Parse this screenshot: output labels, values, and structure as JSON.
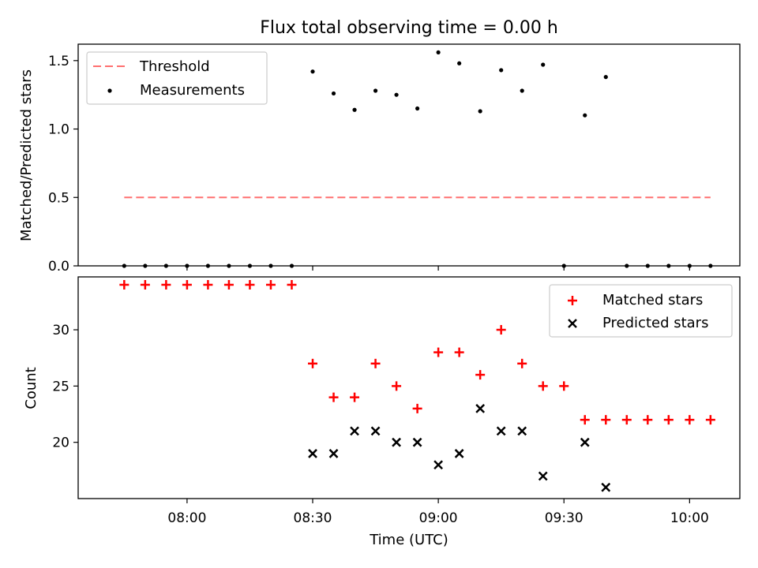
{
  "chart_data": [
    {
      "type": "scatter",
      "title": "Flux total observing time = 0.00 h",
      "ylabel": "Matched/Predicted stars",
      "xlabel": "",
      "ylim": [
        0,
        1.62
      ],
      "yticks": [
        "0.0",
        "0.5",
        "1.0",
        "1.5"
      ],
      "grid": false,
      "legend_position": "upper-left",
      "threshold": {
        "name": "Threshold",
        "value": 0.5,
        "x_start": "07:45",
        "x_end": "10:05",
        "color": "#ff7070"
      },
      "series": [
        {
          "name": "Measurements",
          "color": "#000000",
          "points": [
            [
              "07:45",
              0
            ],
            [
              "07:50",
              0
            ],
            [
              "07:55",
              0
            ],
            [
              "08:00",
              0
            ],
            [
              "08:05",
              0
            ],
            [
              "08:10",
              0
            ],
            [
              "08:15",
              0
            ],
            [
              "08:20",
              0
            ],
            [
              "08:25",
              0
            ],
            [
              "08:30",
              1.42
            ],
            [
              "08:35",
              1.26
            ],
            [
              "08:40",
              1.14
            ],
            [
              "08:45",
              1.28
            ],
            [
              "08:50",
              1.25
            ],
            [
              "08:55",
              1.15
            ],
            [
              "09:00",
              1.56
            ],
            [
              "09:05",
              1.48
            ],
            [
              "09:10",
              1.13
            ],
            [
              "09:15",
              1.43
            ],
            [
              "09:20",
              1.28
            ],
            [
              "09:25",
              1.47
            ],
            [
              "09:30",
              0
            ],
            [
              "09:35",
              1.1
            ],
            [
              "09:40",
              1.38
            ],
            [
              "09:45",
              0
            ],
            [
              "09:50",
              0
            ],
            [
              "09:55",
              0
            ],
            [
              "10:00",
              0
            ],
            [
              "10:05",
              0
            ]
          ]
        }
      ]
    },
    {
      "type": "scatter",
      "title": "",
      "xlabel": "Time (UTC)",
      "ylabel": "Count",
      "ylim": [
        15.0,
        34.7
      ],
      "yticks": [
        "20",
        "25",
        "30"
      ],
      "xticks": [
        "08:00",
        "08:30",
        "09:00",
        "09:30",
        "10:00"
      ],
      "xlim": [
        "07:34",
        "10:12"
      ],
      "grid": false,
      "legend_position": "upper-right",
      "series": [
        {
          "name": "Matched stars",
          "marker": "+",
          "color": "#ff0000",
          "points": [
            [
              "07:45",
              34
            ],
            [
              "07:50",
              34
            ],
            [
              "07:55",
              34
            ],
            [
              "08:00",
              34
            ],
            [
              "08:05",
              34
            ],
            [
              "08:10",
              34
            ],
            [
              "08:15",
              34
            ],
            [
              "08:20",
              34
            ],
            [
              "08:25",
              34
            ],
            [
              "08:30",
              27
            ],
            [
              "08:35",
              24
            ],
            [
              "08:40",
              24
            ],
            [
              "08:45",
              27
            ],
            [
              "08:50",
              25
            ],
            [
              "08:55",
              23
            ],
            [
              "09:00",
              28
            ],
            [
              "09:05",
              28
            ],
            [
              "09:10",
              26
            ],
            [
              "09:15",
              30
            ],
            [
              "09:20",
              27
            ],
            [
              "09:25",
              25
            ],
            [
              "09:30",
              25
            ],
            [
              "09:35",
              22
            ],
            [
              "09:40",
              22
            ],
            [
              "09:45",
              22
            ],
            [
              "09:50",
              22
            ],
            [
              "09:55",
              22
            ],
            [
              "10:00",
              22
            ],
            [
              "10:05",
              22
            ]
          ]
        },
        {
          "name": "Predicted stars",
          "marker": "x",
          "color": "#000000",
          "points": [
            [
              "08:30",
              19
            ],
            [
              "08:35",
              19
            ],
            [
              "08:40",
              21
            ],
            [
              "08:45",
              21
            ],
            [
              "08:50",
              20
            ],
            [
              "08:55",
              20
            ],
            [
              "09:00",
              18
            ],
            [
              "09:05",
              19
            ],
            [
              "09:10",
              23
            ],
            [
              "09:15",
              21
            ],
            [
              "09:20",
              21
            ],
            [
              "09:25",
              17
            ],
            [
              "09:35",
              20
            ],
            [
              "09:40",
              16
            ]
          ]
        }
      ]
    }
  ]
}
